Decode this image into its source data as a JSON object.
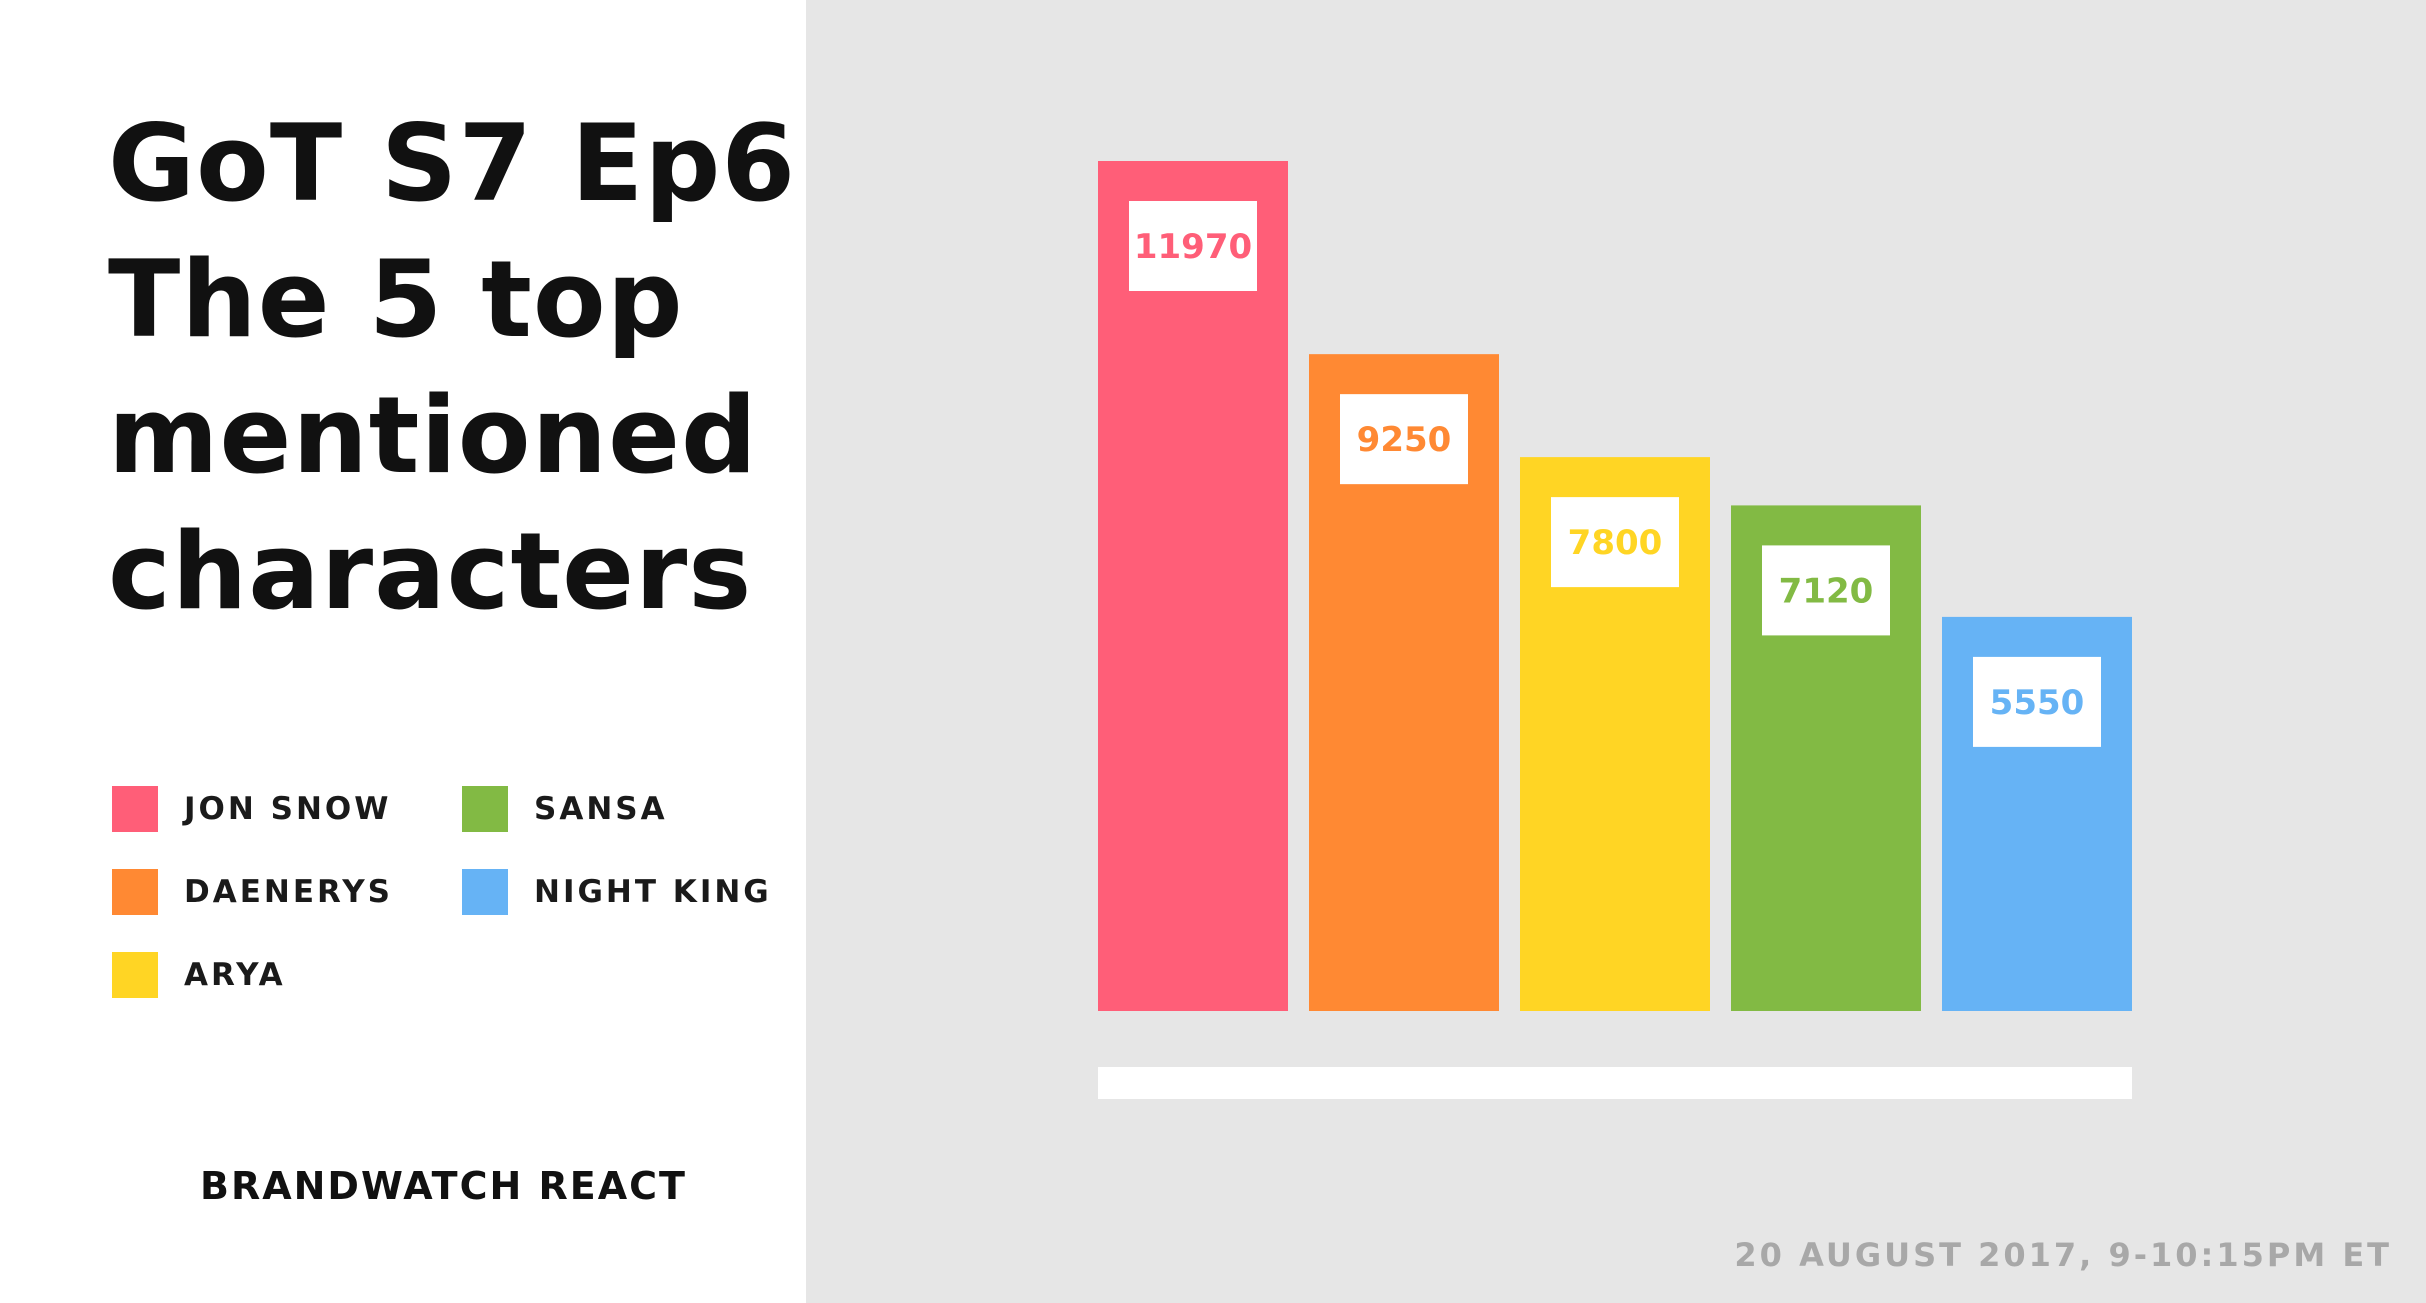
{
  "title_lines": [
    "GoT S7 Ep6:",
    "The 5 top",
    "mentioned",
    "characters"
  ],
  "brand": "BRANDWATCH REACT",
  "date": "20 AUGUST 2017, 9-10:15PM ET",
  "colors": {
    "jon_snow": "#ff5e78",
    "daenerys": "#ff8933",
    "arya": "#ffd524",
    "sansa": "#82ba44",
    "night_king": "#66b3f5",
    "panel_bg": "#e6e6e6"
  },
  "legend": [
    {
      "label": "JON SNOW",
      "color": "#ff5e78"
    },
    {
      "label": "DAENERYS",
      "color": "#ff8933"
    },
    {
      "label": "ARYA",
      "color": "#ffd524"
    },
    {
      "label": "SANSA",
      "color": "#82ba44"
    },
    {
      "label": "NIGHT KING",
      "color": "#66b3f5"
    }
  ],
  "chart_data": {
    "type": "bar",
    "title": "GoT S7 Ep6: The 5 top mentioned characters",
    "categories": [
      "JON SNOW",
      "DAENERYS",
      "ARYA",
      "SANSA",
      "NIGHT KING"
    ],
    "values": [
      11970,
      9250,
      7800,
      7120,
      5550
    ],
    "colors": [
      "#ff5e78",
      "#ff8933",
      "#ffd524",
      "#82ba44",
      "#66b3f5"
    ],
    "data_labels": [
      "11970",
      "9250",
      "7800",
      "7120",
      "5550"
    ],
    "xlabel": "",
    "ylabel": "",
    "ylim": [
      0,
      11970
    ],
    "grid": false,
    "legend_position": "left"
  }
}
